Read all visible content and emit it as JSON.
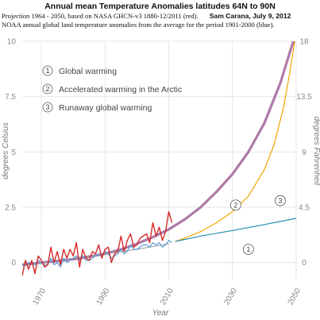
{
  "header": {
    "title": "Annual mean Temperature Anomalies latitudes 64N to 90N",
    "subtitle_line1": "Projection 1964 - 2050, based on NASA GHCN-v3 1880-12/2011 (red).",
    "author_date": "Sam Carana, July 9, 2012",
    "subtitle_line2": "NOAA annual global land temperature anomalies from the average for the period 1901-2000 (blue)."
  },
  "chart_data": {
    "type": "line",
    "xlabel": "Year",
    "ylabel_left": "degrees Celsius",
    "ylabel_right": "degrees Fahrenheit",
    "xlim": [
      1964,
      2050
    ],
    "ylim": [
      -0.8,
      10
    ],
    "x_ticks": [
      "1970",
      "1990",
      "2010",
      "2030",
      "2050"
    ],
    "x_tick_values": [
      1970,
      1990,
      2010,
      2030,
      2050
    ],
    "y_ticks_left": [
      "0",
      "2.5",
      "5",
      "7.5",
      "10"
    ],
    "y_tick_values_left": [
      0,
      2.5,
      5,
      7.5,
      10
    ],
    "y_ticks_right": [
      "0",
      "4.5",
      "9",
      "13.5",
      "18"
    ],
    "legend": [
      {
        "number": "1",
        "label": "Global warming"
      },
      {
        "number": "2",
        "label": "Accelerated warming in the Arctic"
      },
      {
        "number": "3",
        "label": "Runaway global warming"
      }
    ],
    "curve_markers": [
      {
        "number": "1",
        "x": 2035,
        "y": 0.6
      },
      {
        "number": "2",
        "x": 2031,
        "y": 2.6
      },
      {
        "number": "3",
        "x": 2045,
        "y": 2.8
      }
    ],
    "colors": {
      "red": "#d42a2a",
      "blue": "#5b9bd5",
      "purple": "#b07aa8",
      "orange": "#f0a500",
      "teal": "#1f8fb0",
      "gray": "#999999",
      "grid": "#e6e6e6"
    },
    "series": [
      {
        "color": "red",
        "x": [
          1964,
          1965,
          1966,
          1967,
          1968,
          1969,
          1970,
          1971,
          1972,
          1973,
          1974,
          1975,
          1976,
          1977,
          1978,
          1979,
          1980,
          1981,
          1982,
          1983,
          1984,
          1985,
          1986,
          1987,
          1988,
          1989,
          1990,
          1991,
          1992,
          1993,
          1994,
          1995,
          1996,
          1997,
          1998,
          1999,
          2000,
          2001,
          2002,
          2003,
          2004,
          2005,
          2006,
          2007,
          2008,
          2009,
          2010,
          2011
        ],
        "y": [
          -0.6,
          0.1,
          -0.3,
          0.1,
          -0.5,
          0.3,
          0.1,
          -0.2,
          -0.1,
          0.7,
          0.0,
          0.5,
          -0.1,
          0.6,
          0.2,
          0.6,
          0.3,
          0.9,
          -0.2,
          0.6,
          0.2,
          0.1,
          0.5,
          0.4,
          0.8,
          0.2,
          0.6,
          0.7,
          0.0,
          0.4,
          0.5,
          1.2,
          0.5,
          1.0,
          1.3,
          0.7,
          0.8,
          1.1,
          1.2,
          1.3,
          0.9,
          1.8,
          1.2,
          1.6,
          1.0,
          1.4,
          2.3,
          1.8
        ]
      },
      {
        "color": "blue",
        "x": [
          1964,
          1965,
          1966,
          1967,
          1968,
          1969,
          1970,
          1971,
          1972,
          1973,
          1974,
          1975,
          1976,
          1977,
          1978,
          1979,
          1980,
          1981,
          1982,
          1983,
          1984,
          1985,
          1986,
          1987,
          1988,
          1989,
          1990,
          1991,
          1992,
          1993,
          1994,
          1995,
          1996,
          1997,
          1998,
          1999,
          2000,
          2001,
          2002,
          2003,
          2004,
          2005,
          2006,
          2007,
          2008,
          2009,
          2010,
          2011
        ],
        "y": [
          -0.1,
          -0.1,
          0.0,
          0.0,
          -0.1,
          0.1,
          0.0,
          -0.1,
          -0.1,
          0.2,
          -0.1,
          0.0,
          -0.2,
          0.2,
          0.0,
          0.1,
          0.2,
          0.3,
          0.1,
          0.3,
          0.1,
          0.1,
          0.2,
          0.3,
          0.4,
          0.3,
          0.5,
          0.4,
          0.2,
          0.3,
          0.4,
          0.6,
          0.4,
          0.5,
          0.8,
          0.6,
          0.6,
          0.7,
          0.8,
          0.8,
          0.7,
          0.9,
          0.8,
          0.9,
          0.7,
          0.8,
          1.0,
          0.9
        ]
      },
      {
        "name": "Accelerated warming in the Arctic",
        "color": "purple",
        "x": [
          1964,
          1970,
          1980,
          1990,
          1995,
          2000,
          2005,
          2010,
          2015,
          2020,
          2025,
          2030,
          2035,
          2040,
          2045,
          2048,
          2050
        ],
        "y": [
          -0.1,
          0.0,
          0.15,
          0.4,
          0.6,
          0.85,
          1.15,
          1.5,
          1.95,
          2.5,
          3.2,
          4.0,
          5.0,
          6.3,
          8.1,
          9.5,
          10.4
        ]
      },
      {
        "name": "Runaway global warming",
        "color": "orange",
        "x": [
          2012,
          2015,
          2020,
          2025,
          2030,
          2035,
          2040,
          2043,
          2046,
          2048,
          2050
        ],
        "y": [
          0.95,
          1.1,
          1.4,
          1.8,
          2.3,
          3.0,
          4.2,
          5.3,
          7.0,
          8.6,
          10.4
        ]
      },
      {
        "name": "Global warming",
        "color": "teal",
        "x": [
          2012,
          2020,
          2030,
          2040,
          2050
        ],
        "y": [
          0.95,
          1.2,
          1.45,
          1.72,
          2.0
        ]
      },
      {
        "color": "gray",
        "x": [
          1964,
          1980,
          2000,
          2010
        ],
        "y": [
          -0.15,
          0.2,
          0.6,
          0.85
        ]
      }
    ]
  }
}
